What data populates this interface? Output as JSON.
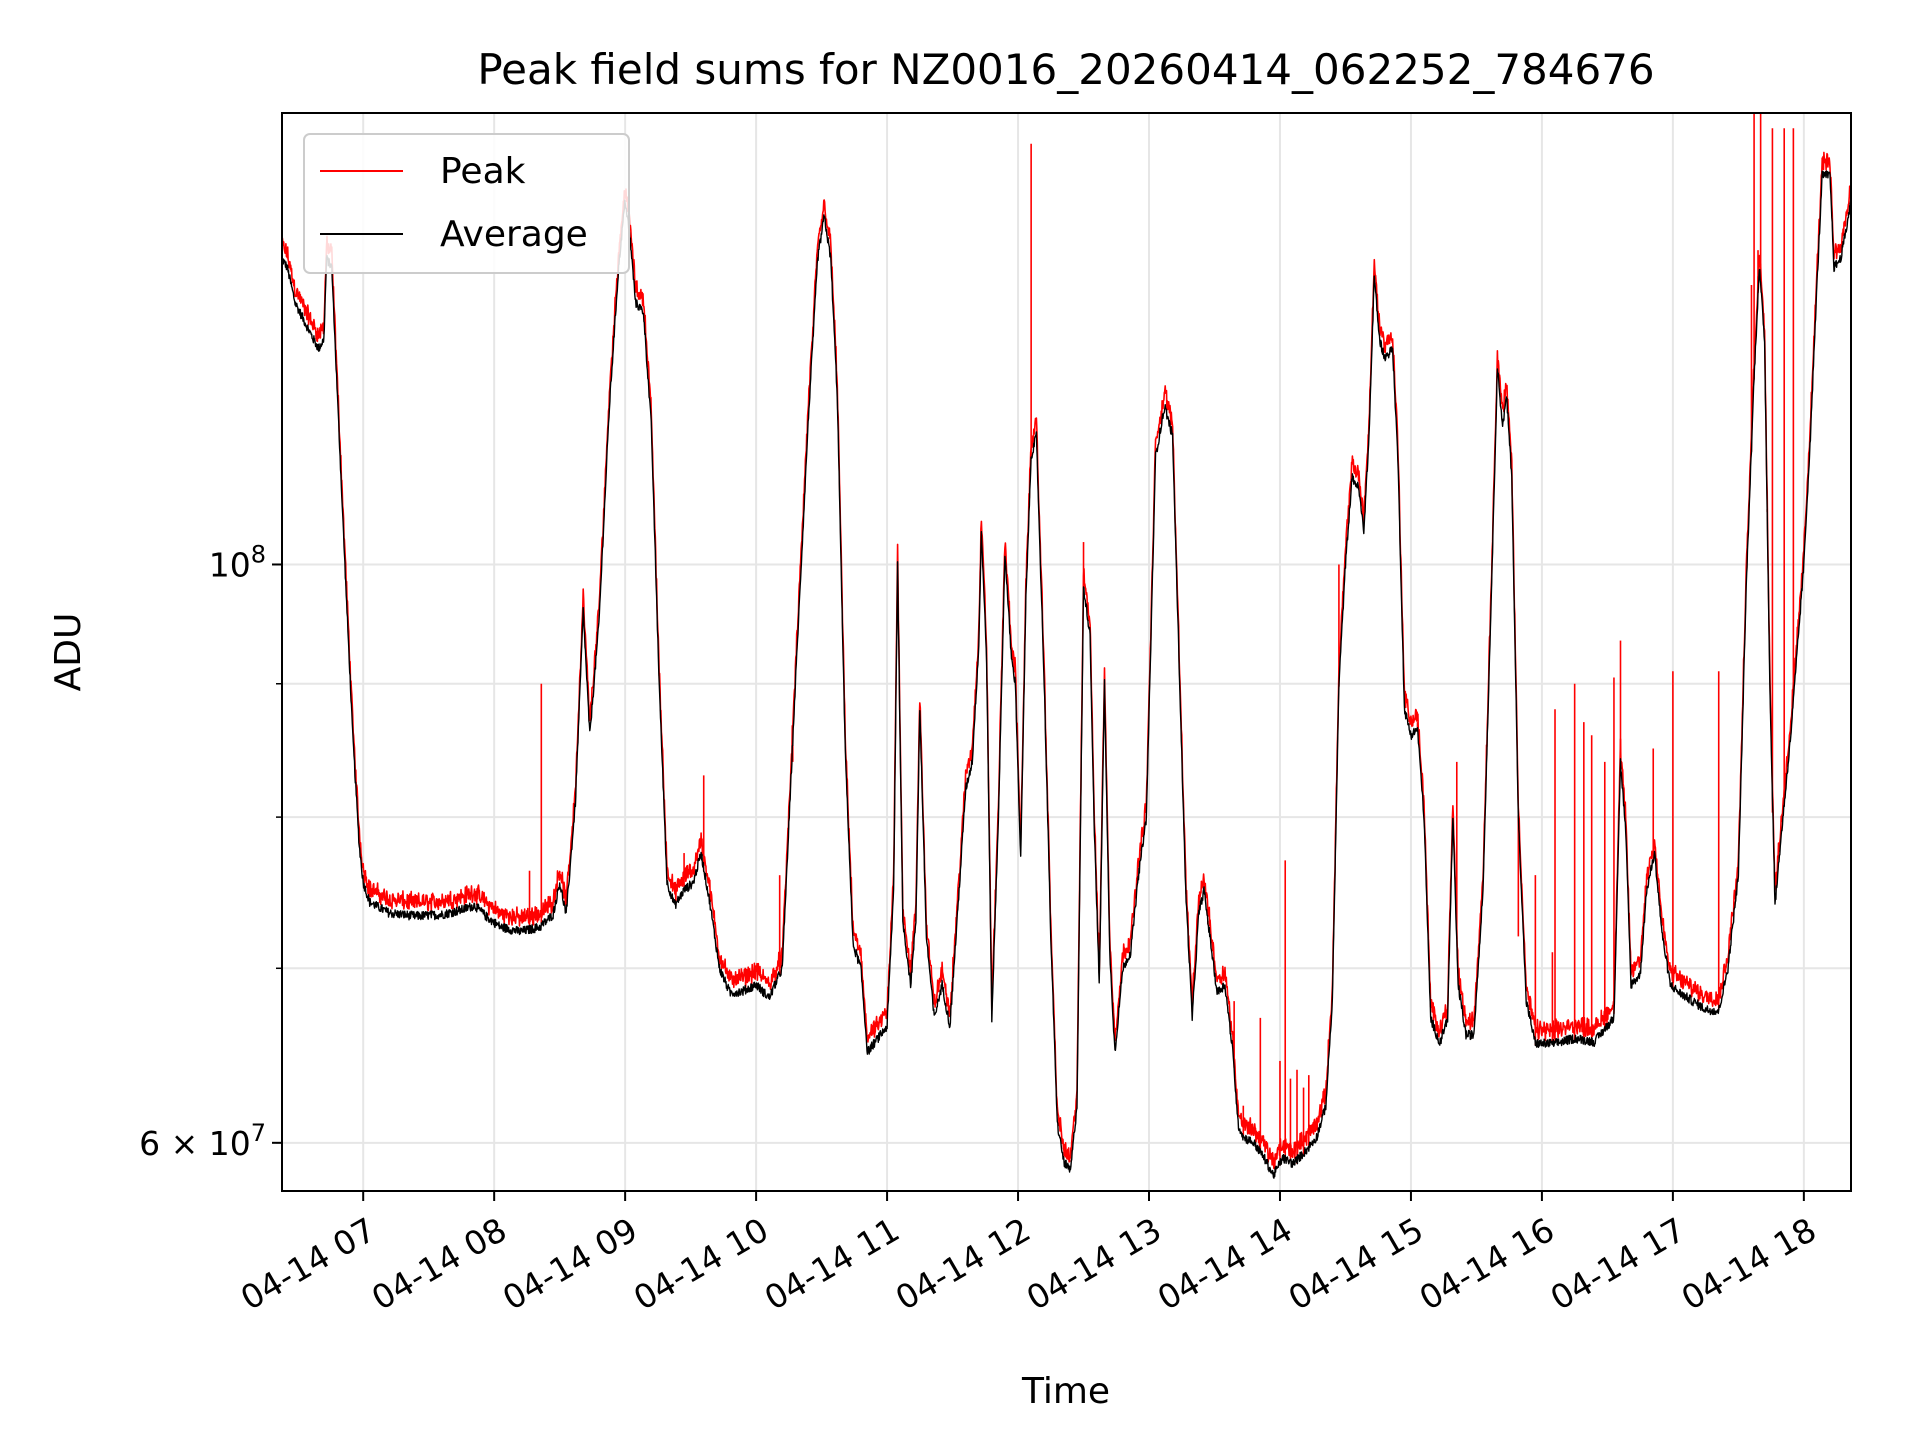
{
  "chart_data": {
    "type": "line",
    "title": "Peak field sums for NZ0016_20260414_062252_784676",
    "xlabel": "Time",
    "ylabel": "ADU",
    "yscale": "log",
    "xlim_hours": [
      6.38,
      18.36
    ],
    "ylim": [
      57500000,
      149000000
    ],
    "grid": true,
    "legend_position": "upper left",
    "x_ticks": [
      {
        "hour": 7,
        "label": "04-14 07"
      },
      {
        "hour": 8,
        "label": "04-14 08"
      },
      {
        "hour": 9,
        "label": "04-14 09"
      },
      {
        "hour": 10,
        "label": "04-14 10"
      },
      {
        "hour": 11,
        "label": "04-14 11"
      },
      {
        "hour": 12,
        "label": "04-14 12"
      },
      {
        "hour": 13,
        "label": "04-14 13"
      },
      {
        "hour": 14,
        "label": "04-14 14"
      },
      {
        "hour": 15,
        "label": "04-14 15"
      },
      {
        "hour": 16,
        "label": "04-14 16"
      },
      {
        "hour": 17,
        "label": "04-14 17"
      },
      {
        "hour": 18,
        "label": "04-14 18"
      }
    ],
    "y_major_ticks": [
      {
        "value": 60000000,
        "label_mantissa": "6 × 10",
        "label_exp": "7"
      },
      {
        "value": 100000000,
        "label_mantissa": "10",
        "label_exp": "8"
      }
    ],
    "y_minor_ticks": [
      60000000,
      70000000,
      80000000,
      90000000,
      100000000
    ],
    "series": [
      {
        "name": "Peak",
        "color": "#ff0000",
        "role": "peak"
      },
      {
        "name": "Average",
        "color": "#000000",
        "role": "average"
      }
    ],
    "average_points": [
      [
        6.38,
        131000000
      ],
      [
        6.42,
        130000000
      ],
      [
        6.48,
        126000000
      ],
      [
        6.55,
        124000000
      ],
      [
        6.62,
        122000000
      ],
      [
        6.66,
        121000000
      ],
      [
        6.7,
        122000000
      ],
      [
        6.72,
        131000000
      ],
      [
        6.76,
        130000000
      ],
      [
        6.8,
        117000000
      ],
      [
        6.86,
        100000000
      ],
      [
        6.92,
        86000000
      ],
      [
        6.97,
        78000000
      ],
      [
        7.0,
        75500000
      ],
      [
        7.05,
        74200000
      ],
      [
        7.2,
        73500000
      ],
      [
        7.4,
        73300000
      ],
      [
        7.6,
        73400000
      ],
      [
        7.75,
        73700000
      ],
      [
        7.85,
        74000000
      ],
      [
        7.95,
        73200000
      ],
      [
        8.05,
        72600000
      ],
      [
        8.2,
        72300000
      ],
      [
        8.35,
        72600000
      ],
      [
        8.45,
        73400000
      ],
      [
        8.5,
        75500000
      ],
      [
        8.55,
        73400000
      ],
      [
        8.62,
        81000000
      ],
      [
        8.68,
        96000000
      ],
      [
        8.73,
        86000000
      ],
      [
        8.8,
        95000000
      ],
      [
        8.88,
        115000000
      ],
      [
        8.95,
        130000000
      ],
      [
        9.0,
        138000000
      ],
      [
        9.04,
        133000000
      ],
      [
        9.08,
        126000000
      ],
      [
        9.14,
        125000000
      ],
      [
        9.2,
        113000000
      ],
      [
        9.26,
        90000000
      ],
      [
        9.32,
        75500000
      ],
      [
        9.38,
        74000000
      ],
      [
        9.45,
        75000000
      ],
      [
        9.52,
        75500000
      ],
      [
        9.58,
        77500000
      ],
      [
        9.65,
        74000000
      ],
      [
        9.72,
        70000000
      ],
      [
        9.8,
        68500000
      ],
      [
        9.9,
        68600000
      ],
      [
        10.0,
        69000000
      ],
      [
        10.1,
        68200000
      ],
      [
        10.2,
        70000000
      ],
      [
        10.3,
        90000000
      ],
      [
        10.4,
        114000000
      ],
      [
        10.47,
        131000000
      ],
      [
        10.52,
        136000000
      ],
      [
        10.57,
        131000000
      ],
      [
        10.62,
        116000000
      ],
      [
        10.68,
        85000000
      ],
      [
        10.74,
        71500000
      ],
      [
        10.8,
        70000000
      ],
      [
        10.85,
        65000000
      ],
      [
        10.95,
        66000000
      ],
      [
        11.0,
        66500000
      ],
      [
        11.05,
        75000000
      ],
      [
        11.08,
        100000000
      ],
      [
        11.12,
        73000000
      ],
      [
        11.18,
        69000000
      ],
      [
        11.22,
        73000000
      ],
      [
        11.25,
        88000000
      ],
      [
        11.3,
        72000000
      ],
      [
        11.36,
        67000000
      ],
      [
        11.42,
        69000000
      ],
      [
        11.48,
        66500000
      ],
      [
        11.55,
        75000000
      ],
      [
        11.6,
        82000000
      ],
      [
        11.65,
        84000000
      ],
      [
        11.7,
        93000000
      ],
      [
        11.72,
        103000000
      ],
      [
        11.76,
        92000000
      ],
      [
        11.8,
        67000000
      ],
      [
        11.85,
        80000000
      ],
      [
        11.9,
        101000000
      ],
      [
        11.95,
        92000000
      ],
      [
        11.98,
        90000000
      ],
      [
        12.02,
        77000000
      ],
      [
        12.06,
        97000000
      ],
      [
        12.1,
        110000000
      ],
      [
        12.14,
        112000000
      ],
      [
        12.2,
        90000000
      ],
      [
        12.25,
        72000000
      ],
      [
        12.3,
        61000000
      ],
      [
        12.35,
        59000000
      ],
      [
        12.4,
        58500000
      ],
      [
        12.45,
        62000000
      ],
      [
        12.5,
        98000000
      ],
      [
        12.55,
        94000000
      ],
      [
        12.58,
        80000000
      ],
      [
        12.62,
        69000000
      ],
      [
        12.66,
        90000000
      ],
      [
        12.7,
        71000000
      ],
      [
        12.74,
        65000000
      ],
      [
        12.8,
        70000000
      ],
      [
        12.86,
        71000000
      ],
      [
        12.92,
        76000000
      ],
      [
        12.98,
        80000000
      ],
      [
        13.05,
        110000000
      ],
      [
        13.12,
        115000000
      ],
      [
        13.18,
        112000000
      ],
      [
        13.24,
        88000000
      ],
      [
        13.28,
        75000000
      ],
      [
        13.33,
        67000000
      ],
      [
        13.38,
        73500000
      ],
      [
        13.42,
        75000000
      ],
      [
        13.48,
        71000000
      ],
      [
        13.52,
        68500000
      ],
      [
        13.58,
        69000000
      ],
      [
        13.64,
        65000000
      ],
      [
        13.68,
        61000000
      ],
      [
        13.72,
        60300000
      ],
      [
        13.8,
        60000000
      ],
      [
        13.88,
        59200000
      ],
      [
        13.95,
        58300000
      ],
      [
        14.02,
        59200000
      ],
      [
        14.1,
        58900000
      ],
      [
        14.2,
        59600000
      ],
      [
        14.28,
        60300000
      ],
      [
        14.35,
        62000000
      ],
      [
        14.4,
        68000000
      ],
      [
        14.45,
        90000000
      ],
      [
        14.5,
        100000000
      ],
      [
        14.55,
        108000000
      ],
      [
        14.6,
        107000000
      ],
      [
        14.64,
        103000000
      ],
      [
        14.68,
        112000000
      ],
      [
        14.72,
        129000000
      ],
      [
        14.76,
        122000000
      ],
      [
        14.8,
        120000000
      ],
      [
        14.86,
        121000000
      ],
      [
        14.9,
        110000000
      ],
      [
        14.95,
        88000000
      ],
      [
        15.0,
        86000000
      ],
      [
        15.05,
        86500000
      ],
      [
        15.1,
        80000000
      ],
      [
        15.15,
        67000000
      ],
      [
        15.22,
        65500000
      ],
      [
        15.28,
        67000000
      ],
      [
        15.32,
        80000000
      ],
      [
        15.36,
        69000000
      ],
      [
        15.42,
        66000000
      ],
      [
        15.48,
        66000000
      ],
      [
        15.55,
        75000000
      ],
      [
        15.62,
        100000000
      ],
      [
        15.66,
        119000000
      ],
      [
        15.7,
        113000000
      ],
      [
        15.73,
        116000000
      ],
      [
        15.77,
        108000000
      ],
      [
        15.82,
        80000000
      ],
      [
        15.88,
        68000000
      ],
      [
        15.95,
        65500000
      ],
      [
        16.1,
        65500000
      ],
      [
        16.25,
        65800000
      ],
      [
        16.4,
        65600000
      ],
      [
        16.55,
        67000000
      ],
      [
        16.6,
        84000000
      ],
      [
        16.64,
        79000000
      ],
      [
        16.68,
        69000000
      ],
      [
        16.75,
        69600000
      ],
      [
        16.8,
        75000000
      ],
      [
        16.86,
        77500000
      ],
      [
        16.92,
        72000000
      ],
      [
        16.98,
        69000000
      ],
      [
        17.05,
        68500000
      ],
      [
        17.15,
        68000000
      ],
      [
        17.25,
        67500000
      ],
      [
        17.35,
        67400000
      ],
      [
        17.42,
        70000000
      ],
      [
        17.5,
        76000000
      ],
      [
        17.56,
        98000000
      ],
      [
        17.62,
        118000000
      ],
      [
        17.66,
        130000000
      ],
      [
        17.7,
        122000000
      ],
      [
        17.74,
        90000000
      ],
      [
        17.78,
        74000000
      ],
      [
        17.82,
        78000000
      ],
      [
        17.9,
        86000000
      ],
      [
        18.0,
        100000000
      ],
      [
        18.05,
        112000000
      ],
      [
        18.1,
        128000000
      ],
      [
        18.14,
        141000000
      ],
      [
        18.2,
        141000000
      ],
      [
        18.23,
        130000000
      ],
      [
        18.28,
        131000000
      ],
      [
        18.33,
        135000000
      ],
      [
        18.36,
        138000000
      ]
    ],
    "peak_spikes": [
      [
        8.27,
        76300000
      ],
      [
        8.36,
        90000000
      ],
      [
        9.45,
        77500000
      ],
      [
        9.6,
        83000000
      ],
      [
        10.18,
        76000000
      ],
      [
        10.28,
        84000000
      ],
      [
        11.08,
        95000000
      ],
      [
        11.65,
        85000000
      ],
      [
        11.72,
        103000000
      ],
      [
        11.9,
        101000000
      ],
      [
        12.1,
        145000000
      ],
      [
        12.5,
        102000000
      ],
      [
        13.45,
        73000000
      ],
      [
        13.65,
        68000000
      ],
      [
        13.72,
        62000000
      ],
      [
        13.85,
        67000000
      ],
      [
        14.0,
        64500000
      ],
      [
        14.04,
        77000000
      ],
      [
        14.08,
        63500000
      ],
      [
        14.13,
        64000000
      ],
      [
        14.18,
        63000000
      ],
      [
        14.22,
        63700000
      ],
      [
        14.45,
        100000000
      ],
      [
        15.05,
        87000000
      ],
      [
        15.35,
        84000000
      ],
      [
        15.82,
        72000000
      ],
      [
        15.95,
        76000000
      ],
      [
        16.08,
        71000000
      ],
      [
        16.1,
        88000000
      ],
      [
        16.25,
        90000000
      ],
      [
        16.32,
        87000000
      ],
      [
        16.38,
        86000000
      ],
      [
        16.48,
        84000000
      ],
      [
        16.55,
        90500000
      ],
      [
        16.6,
        93500000
      ],
      [
        16.85,
        85000000
      ],
      [
        17.0,
        91000000
      ],
      [
        17.35,
        91000000
      ],
      [
        17.6,
        128000000
      ],
      [
        17.62,
        150000000
      ],
      [
        17.65,
        132000000
      ],
      [
        17.67,
        152000000
      ],
      [
        17.72,
        105000000
      ],
      [
        17.76,
        147000000
      ],
      [
        17.85,
        147000000
      ],
      [
        17.92,
        147000000
      ]
    ]
  }
}
